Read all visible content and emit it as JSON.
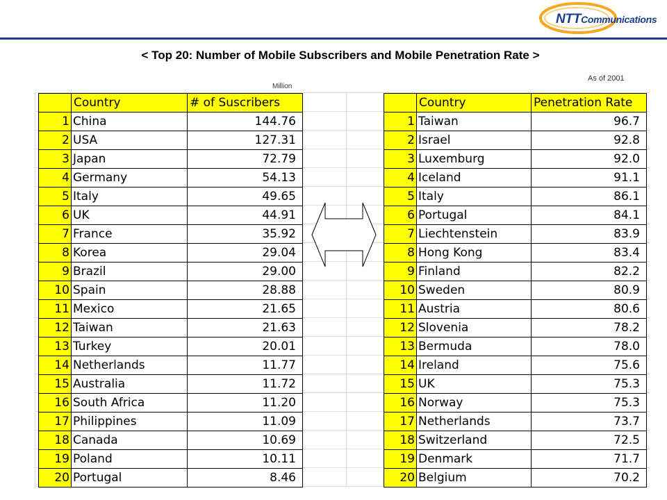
{
  "brand": {
    "logo_ntt": "NTT",
    "logo_comm": "Communications"
  },
  "title": "< Top 20: Number of Mobile Subscribers and Mobile Penetration Rate >",
  "as_of": "As of 2001",
  "unit": "Million",
  "colors": {
    "header_fill": "#ffff00",
    "rule": "#1b3d8f",
    "logo_swoosh": "#f5a623"
  },
  "left_table": {
    "headers": [
      "",
      "Country",
      "# of Suscribers"
    ],
    "rows": [
      {
        "rank": "1",
        "country": "China",
        "value": "144.76"
      },
      {
        "rank": "2",
        "country": "USA",
        "value": "127.31"
      },
      {
        "rank": "3",
        "country": "Japan",
        "value": "72.79"
      },
      {
        "rank": "4",
        "country": "Germany",
        "value": "54.13"
      },
      {
        "rank": "5",
        "country": "Italy",
        "value": "49.65"
      },
      {
        "rank": "6",
        "country": "UK",
        "value": "44.91"
      },
      {
        "rank": "7",
        "country": "France",
        "value": "35.92"
      },
      {
        "rank": "8",
        "country": "Korea",
        "value": "29.04"
      },
      {
        "rank": "9",
        "country": "Brazil",
        "value": "29.00"
      },
      {
        "rank": "10",
        "country": "Spain",
        "value": "28.88"
      },
      {
        "rank": "11",
        "country": "Mexico",
        "value": "21.65"
      },
      {
        "rank": "12",
        "country": "Taiwan",
        "value": "21.63"
      },
      {
        "rank": "13",
        "country": "Turkey",
        "value": "20.01"
      },
      {
        "rank": "14",
        "country": "Netherlands",
        "value": "11.77"
      },
      {
        "rank": "15",
        "country": "Australia",
        "value": "11.72"
      },
      {
        "rank": "16",
        "country": "South Africa",
        "value": "11.20"
      },
      {
        "rank": "17",
        "country": "Philippines",
        "value": "11.09"
      },
      {
        "rank": "18",
        "country": "Canada",
        "value": "10.69"
      },
      {
        "rank": "19",
        "country": "Poland",
        "value": "10.11"
      },
      {
        "rank": "20",
        "country": "Portugal",
        "value": "8.46"
      }
    ]
  },
  "right_table": {
    "headers": [
      "",
      "Country",
      "Penetration Rate"
    ],
    "rows": [
      {
        "rank": "1",
        "country": "Taiwan",
        "value": "96.7"
      },
      {
        "rank": "2",
        "country": "Israel",
        "value": "92.8"
      },
      {
        "rank": "3",
        "country": "Luxemburg",
        "value": "92.0"
      },
      {
        "rank": "4",
        "country": "Iceland",
        "value": "91.1"
      },
      {
        "rank": "5",
        "country": "Italy",
        "value": "86.1"
      },
      {
        "rank": "6",
        "country": "Portugal",
        "value": "84.1"
      },
      {
        "rank": "7",
        "country": "Liechtenstein",
        "value": "83.9"
      },
      {
        "rank": "8",
        "country": "Hong Kong",
        "value": "83.4"
      },
      {
        "rank": "9",
        "country": "Finland",
        "value": "82.2"
      },
      {
        "rank": "10",
        "country": "Sweden",
        "value": "80.9"
      },
      {
        "rank": "11",
        "country": "Austria",
        "value": "80.6"
      },
      {
        "rank": "12",
        "country": "Slovenia",
        "value": "78.2"
      },
      {
        "rank": "13",
        "country": "Bermuda",
        "value": "78.0"
      },
      {
        "rank": "14",
        "country": "Ireland",
        "value": "75.6"
      },
      {
        "rank": "15",
        "country": "UK",
        "value": "75.3"
      },
      {
        "rank": "16",
        "country": "Norway",
        "value": "75.3"
      },
      {
        "rank": "17",
        "country": "Netherlands",
        "value": "73.7"
      },
      {
        "rank": "18",
        "country": "Switzerland",
        "value": "72.5"
      },
      {
        "rank": "19",
        "country": "Denmark",
        "value": "71.7"
      },
      {
        "rank": "20",
        "country": "Belgium",
        "value": "70.2"
      }
    ]
  }
}
